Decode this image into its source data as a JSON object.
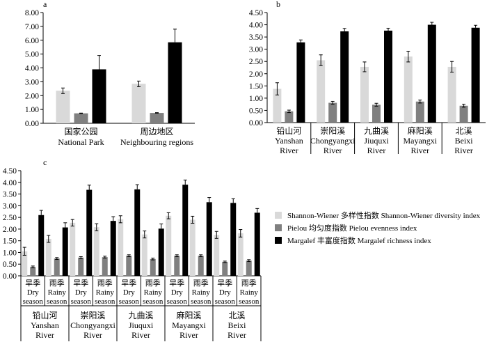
{
  "colors": {
    "shannon": "#d9d9d9",
    "pielou": "#808080",
    "margalef": "#000000"
  },
  "legend": {
    "items": [
      {
        "series": "shannon",
        "label": "Shannon-Wiener 多样性指数 Shannon-Wiener diversity index"
      },
      {
        "series": "pielou",
        "label": "Pielou 均匀度指数 Pielou evenness index"
      },
      {
        "series": "margalef",
        "label": "Margalef 丰富度指数 Margalef richness index"
      }
    ]
  },
  "chart_data": [
    {
      "panel": "a",
      "type": "bar",
      "categories": [
        {
          "zh": "国家公园",
          "en": "National Park"
        },
        {
          "zh": "周边地区",
          "en": "Neighbouring regions"
        }
      ],
      "series": [
        {
          "key": "shannon",
          "values": [
            2.35,
            2.85
          ],
          "errors": [
            0.2,
            0.2
          ]
        },
        {
          "key": "pielou",
          "values": [
            0.72,
            0.75
          ],
          "errors": [
            0.02,
            0.02
          ]
        },
        {
          "key": "margalef",
          "values": [
            3.9,
            5.85
          ],
          "errors": [
            1.0,
            0.95
          ]
        }
      ],
      "ylim": [
        0,
        8
      ],
      "yticks": [
        "0.00",
        "1.00",
        "2.00",
        "3.00",
        "4.00",
        "5.00",
        "6.00",
        "7.00",
        "8.00"
      ],
      "grid": false
    },
    {
      "panel": "b",
      "type": "bar",
      "categories": [
        {
          "zh": "铅山河",
          "en": [
            "Yanshan",
            "River"
          ]
        },
        {
          "zh": "崇阳溪",
          "en": [
            "Chongyangxi",
            "River"
          ]
        },
        {
          "zh": "九曲溪",
          "en": [
            "Jiuquxi",
            "River"
          ]
        },
        {
          "zh": "麻阳溪",
          "en": [
            "Mayangxi",
            "River"
          ]
        },
        {
          "zh": "北溪",
          "en": [
            "Beixi",
            "River"
          ]
        }
      ],
      "series": [
        {
          "key": "shannon",
          "values": [
            1.38,
            2.55,
            2.28,
            2.7,
            2.28
          ],
          "errors": [
            0.25,
            0.22,
            0.2,
            0.22,
            0.22
          ]
        },
        {
          "key": "pielou",
          "values": [
            0.46,
            0.81,
            0.73,
            0.86,
            0.69
          ],
          "errors": [
            0.05,
            0.06,
            0.06,
            0.06,
            0.06
          ]
        },
        {
          "key": "margalef",
          "values": [
            3.28,
            3.73,
            3.76,
            4.0,
            3.88
          ],
          "errors": [
            0.1,
            0.12,
            0.1,
            0.1,
            0.1
          ]
        }
      ],
      "ylim": [
        0,
        4.5
      ],
      "yticks": [
        "0.00",
        "0.50",
        "1.00",
        "1.50",
        "2.00",
        "2.50",
        "3.00",
        "3.50",
        "4.00",
        "4.50"
      ],
      "grid": false
    },
    {
      "panel": "c",
      "type": "bar",
      "categories": [
        {
          "season_zh": "旱季",
          "season_en": [
            "Dry",
            "season"
          ]
        },
        {
          "season_zh": "雨季",
          "season_en": [
            "Rainy",
            "season"
          ]
        },
        {
          "season_zh": "旱季",
          "season_en": [
            "Dry",
            "season"
          ]
        },
        {
          "season_zh": "雨季",
          "season_en": [
            "Rainy",
            "season"
          ]
        },
        {
          "season_zh": "旱季",
          "season_en": [
            "Dry",
            "season"
          ]
        },
        {
          "season_zh": "雨季",
          "season_en": [
            "Rainy",
            "season"
          ]
        },
        {
          "season_zh": "旱季",
          "season_en": [
            "Dry",
            "season"
          ]
        },
        {
          "season_zh": "雨季",
          "season_en": [
            "Rainy",
            "season"
          ]
        },
        {
          "season_zh": "旱季",
          "season_en": [
            "Dry",
            "season"
          ]
        },
        {
          "season_zh": "雨季",
          "season_en": [
            "Rainy",
            "season"
          ]
        }
      ],
      "groups": [
        {
          "zh": "铅山河",
          "en": [
            "Yanshan",
            "River"
          ]
        },
        {
          "zh": "崇阳溪",
          "en": [
            "Chongyangxi",
            "River"
          ]
        },
        {
          "zh": "九曲溪",
          "en": [
            "Jiuquxi",
            "River"
          ]
        },
        {
          "zh": "麻阳溪",
          "en": [
            "Mayangxi",
            "River"
          ]
        },
        {
          "zh": "北溪",
          "en": [
            "Beixi",
            "River"
          ]
        }
      ],
      "series": [
        {
          "key": "shannon",
          "values": [
            1.05,
            1.58,
            2.27,
            2.08,
            2.42,
            1.77,
            2.57,
            2.4,
            1.75,
            1.82
          ],
          "errors": [
            0.17,
            0.15,
            0.14,
            0.15,
            0.15,
            0.15,
            0.13,
            0.15,
            0.15,
            0.16
          ]
        },
        {
          "key": "pielou",
          "values": [
            0.38,
            0.74,
            0.78,
            0.8,
            0.86,
            0.72,
            0.86,
            0.86,
            0.6,
            0.65
          ],
          "errors": [
            0.04,
            0.04,
            0.04,
            0.04,
            0.04,
            0.04,
            0.04,
            0.04,
            0.03,
            0.04
          ]
        },
        {
          "key": "margalef",
          "values": [
            2.6,
            2.07,
            3.68,
            2.35,
            3.7,
            2.02,
            3.9,
            3.15,
            3.12,
            2.7
          ],
          "errors": [
            0.2,
            0.2,
            0.2,
            0.18,
            0.2,
            0.2,
            0.2,
            0.2,
            0.18,
            0.18
          ]
        }
      ],
      "ylim": [
        0,
        4.5
      ],
      "yticks": [
        "0.00",
        "0.50",
        "1.00",
        "1.50",
        "2.00",
        "2.50",
        "3.00",
        "3.50",
        "4.00",
        "4.50"
      ],
      "grid": false
    }
  ]
}
